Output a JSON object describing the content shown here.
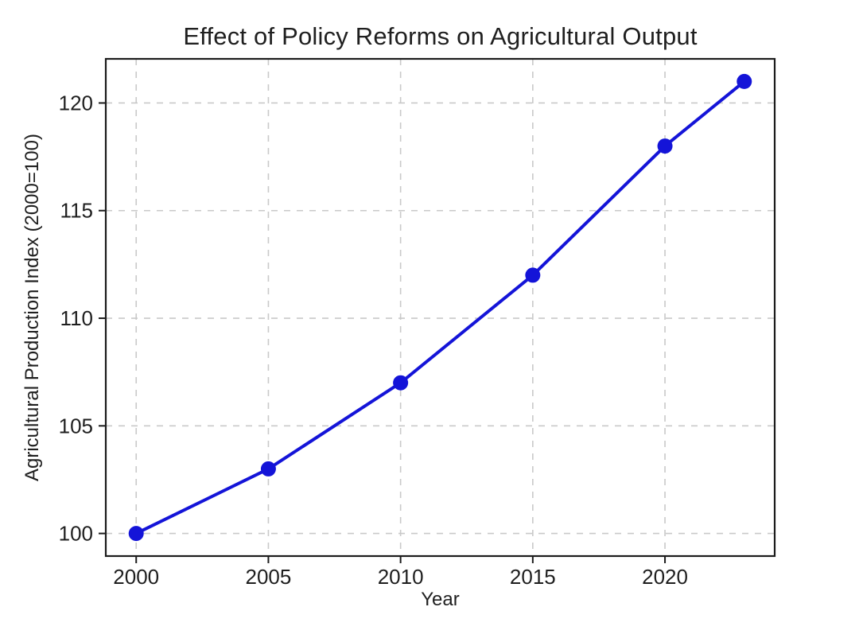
{
  "chart_data": {
    "type": "line",
    "title": "Effect of Policy Reforms on Agricultural Output",
    "xlabel": "Year",
    "ylabel": "Agricultural Production Index (2000=100)",
    "series": [
      {
        "name": "Agricultural Production Index",
        "x": [
          2000,
          2005,
          2010,
          2015,
          2020,
          2023
        ],
        "values": [
          100,
          103,
          107,
          112,
          118,
          121
        ],
        "color": "#1414d8",
        "marker": "circle"
      }
    ],
    "xticks": [
      2000,
      2005,
      2010,
      2015,
      2020
    ],
    "yticks": [
      100,
      105,
      110,
      115,
      120
    ],
    "xlim": [
      1998.85,
      2024.15
    ],
    "ylim": [
      98.95,
      122.05
    ],
    "grid": true,
    "legend": "none",
    "colors": {
      "line": "#1414d8",
      "text": "#1f1f1f",
      "grid": "#c9c9c9",
      "axis": "#1c1c1c",
      "background": "#ffffff"
    }
  }
}
